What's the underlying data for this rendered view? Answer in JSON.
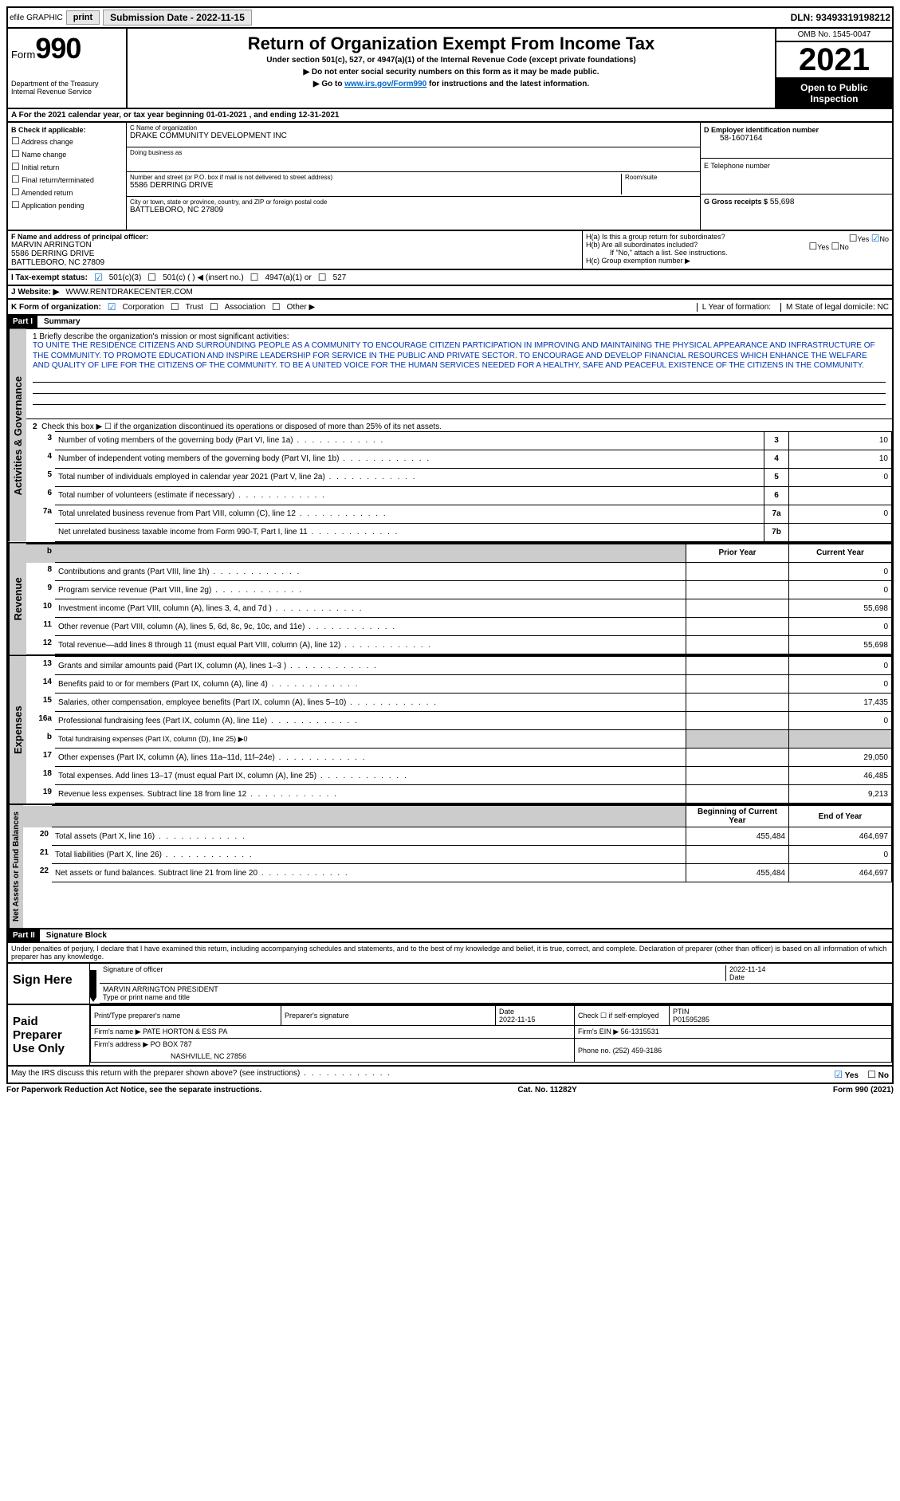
{
  "topbar": {
    "efile": "efile GRAPHIC",
    "print": "print",
    "subdate_label": "Submission Date - 2022-11-15",
    "dln": "DLN: 93493319198212"
  },
  "header": {
    "form_prefix": "Form",
    "form_no": "990",
    "dept": "Department of the Treasury",
    "irs": "Internal Revenue Service",
    "title": "Return of Organization Exempt From Income Tax",
    "sub1": "Under section 501(c), 527, or 4947(a)(1) of the Internal Revenue Code (except private foundations)",
    "sub2": "▶ Do not enter social security numbers on this form as it may be made public.",
    "sub3_pre": "▶ Go to ",
    "sub3_link": "www.irs.gov/Form990",
    "sub3_post": " for instructions and the latest information.",
    "omb": "OMB No. 1545-0047",
    "year": "2021",
    "open": "Open to Public Inspection"
  },
  "rowA": {
    "text_pre": "A For the 2021 calendar year, or tax year beginning ",
    "begin": "01-01-2021",
    "mid": " , and ending ",
    "end": "12-31-2021"
  },
  "colB": {
    "label": "B Check if applicable:",
    "opts": [
      "Address change",
      "Name change",
      "Initial return",
      "Final return/terminated",
      "Amended return",
      "Application pending"
    ]
  },
  "colC": {
    "name_lbl": "C Name of organization",
    "name": "DRAKE COMMUNITY DEVELOPMENT INC",
    "dba_lbl": "Doing business as",
    "dba": "",
    "addr_lbl": "Number and street (or P.O. box if mail is not delivered to street address)",
    "room_lbl": "Room/suite",
    "addr": "5586 DERRING DRIVE",
    "city_lbl": "City or town, state or province, country, and ZIP or foreign postal code",
    "city": "BATTLEBORO, NC  27809"
  },
  "colD": {
    "ein_lbl": "D Employer identification number",
    "ein": "58-1607164",
    "tel_lbl": "E Telephone number",
    "tel": "",
    "gross_lbl": "G Gross receipts $",
    "gross": "55,698"
  },
  "rowF": {
    "lbl": "F  Name and address of principal officer:",
    "name": "MARVIN ARRINGTON",
    "addr1": "5586 DERRING DRIVE",
    "addr2": "BATTLEBORO, NC  27809"
  },
  "rowH": {
    "ha": "H(a)  Is this a group return for subordinates?",
    "hb": "H(b)  Are all subordinates included?",
    "hb_note": "If \"No,\" attach a list. See instructions.",
    "hc": "H(c)  Group exemption number ▶",
    "yes": "Yes",
    "no": "No"
  },
  "rowI": {
    "lbl": "I    Tax-exempt status:",
    "o1": "501(c)(3)",
    "o2": "501(c) (  ) ◀ (insert no.)",
    "o3": "4947(a)(1) or",
    "o4": "527"
  },
  "rowJ": {
    "lbl": "J    Website: ▶",
    "val": "WWW.RENTDRAKECENTER.COM"
  },
  "rowK": {
    "lbl": "K Form of organization:",
    "o1": "Corporation",
    "o2": "Trust",
    "o3": "Association",
    "o4": "Other ▶",
    "L": "L Year of formation:",
    "M": "M State of legal domicile: NC"
  },
  "part1": {
    "hdr": "Part I",
    "title": "Summary"
  },
  "mission": {
    "lbl": "1   Briefly describe the organization's mission or most significant activities:",
    "txt": "TO UNITE THE RESIDENCE CITIZENS AND SURROUNDING PEOPLE AS A COMMUNITY TO ENCOURAGE CITIZEN PARTICIPATION IN IMPROVING AND MAINTAINING THE PHYSICAL APPEARANCE AND INFRASTRUCTURE OF THE COMMUNITY. TO PROMOTE EDUCATION AND INSPIRE LEADERSHIP FOR SERVICE IN THE PUBLIC AND PRIVATE SECTOR. TO ENCOURAGE AND DEVELOP FINANCIAL RESOURCES WHICH ENHANCE THE WELFARE AND QUALITY OF LIFE FOR THE CITIZENS OF THE COMMUNITY. TO BE A UNITED VOICE FOR THE HUMAN SERVICES NEEDED FOR A HEALTHY, SAFE AND PEACEFUL EXISTENCE OF THE CITIZENS IN THE COMMUNITY."
  },
  "activities": {
    "l2": "Check this box ▶ ☐ if the organization discontinued its operations or disposed of more than 25% of its net assets.",
    "rows": [
      {
        "n": "3",
        "d": "Number of voting members of the governing body (Part VI, line 1a)",
        "box": "3",
        "v": "10"
      },
      {
        "n": "4",
        "d": "Number of independent voting members of the governing body (Part VI, line 1b)",
        "box": "4",
        "v": "10"
      },
      {
        "n": "5",
        "d": "Total number of individuals employed in calendar year 2021 (Part V, line 2a)",
        "box": "5",
        "v": "0"
      },
      {
        "n": "6",
        "d": "Total number of volunteers (estimate if necessary)",
        "box": "6",
        "v": ""
      },
      {
        "n": "7a",
        "d": "Total unrelated business revenue from Part VIII, column (C), line 12",
        "box": "7a",
        "v": "0"
      },
      {
        "n": "",
        "d": "Net unrelated business taxable income from Form 990-T, Part I, line 11",
        "box": "7b",
        "v": ""
      }
    ]
  },
  "revenue": {
    "hdr_prior": "Prior Year",
    "hdr_curr": "Current Year",
    "rows": [
      {
        "n": "8",
        "d": "Contributions and grants (Part VIII, line 1h)",
        "p": "",
        "c": "0"
      },
      {
        "n": "9",
        "d": "Program service revenue (Part VIII, line 2g)",
        "p": "",
        "c": "0"
      },
      {
        "n": "10",
        "d": "Investment income (Part VIII, column (A), lines 3, 4, and 7d )",
        "p": "",
        "c": "55,698"
      },
      {
        "n": "11",
        "d": "Other revenue (Part VIII, column (A), lines 5, 6d, 8c, 9c, 10c, and 11e)",
        "p": "",
        "c": "0"
      },
      {
        "n": "12",
        "d": "Total revenue—add lines 8 through 11 (must equal Part VIII, column (A), line 12)",
        "p": "",
        "c": "55,698"
      }
    ]
  },
  "expenses": {
    "rows": [
      {
        "n": "13",
        "d": "Grants and similar amounts paid (Part IX, column (A), lines 1–3 )",
        "p": "",
        "c": "0"
      },
      {
        "n": "14",
        "d": "Benefits paid to or for members (Part IX, column (A), line 4)",
        "p": "",
        "c": "0"
      },
      {
        "n": "15",
        "d": "Salaries, other compensation, employee benefits (Part IX, column (A), lines 5–10)",
        "p": "",
        "c": "17,435"
      },
      {
        "n": "16a",
        "d": "Professional fundraising fees (Part IX, column (A), line 11e)",
        "p": "",
        "c": "0"
      },
      {
        "n": "b",
        "d": "Total fundraising expenses (Part IX, column (D), line 25) ▶0",
        "p": "shade",
        "c": "shade"
      },
      {
        "n": "17",
        "d": "Other expenses (Part IX, column (A), lines 11a–11d, 11f–24e)",
        "p": "",
        "c": "29,050"
      },
      {
        "n": "18",
        "d": "Total expenses. Add lines 13–17 (must equal Part IX, column (A), line 25)",
        "p": "",
        "c": "46,485"
      },
      {
        "n": "19",
        "d": "Revenue less expenses. Subtract line 18 from line 12",
        "p": "",
        "c": "9,213"
      }
    ]
  },
  "netassets": {
    "hdr_begin": "Beginning of Current Year",
    "hdr_end": "End of Year",
    "rows": [
      {
        "n": "20",
        "d": "Total assets (Part X, line 16)",
        "p": "455,484",
        "c": "464,697"
      },
      {
        "n": "21",
        "d": "Total liabilities (Part X, line 26)",
        "p": "",
        "c": "0"
      },
      {
        "n": "22",
        "d": "Net assets or fund balances. Subtract line 21 from line 20",
        "p": "455,484",
        "c": "464,697"
      }
    ]
  },
  "part2": {
    "hdr": "Part II",
    "title": "Signature Block"
  },
  "penalty": "Under penalties of perjury, I declare that I have examined this return, including accompanying schedules and statements, and to the best of my knowledge and belief, it is true, correct, and complete. Declaration of preparer (other than officer) is based on all information of which preparer has any knowledge.",
  "sign": {
    "here": "Sign Here",
    "sig_lbl": "Signature of officer",
    "date_lbl": "Date",
    "date": "2022-11-14",
    "name": "MARVIN ARRINGTON PRESIDENT",
    "name_lbl": "Type or print name and title"
  },
  "paid": {
    "lbl": "Paid Preparer Use Only",
    "h1": "Print/Type preparer's name",
    "h2": "Preparer's signature",
    "h3": "Date",
    "h3v": "2022-11-15",
    "h4": "Check ☐ if self-employed",
    "h5": "PTIN",
    "h5v": "P01595285",
    "firm_lbl": "Firm's name    ▶",
    "firm": "PATE HORTON & ESS PA",
    "ein_lbl": "Firm's EIN ▶",
    "ein": "56-1315531",
    "addr_lbl": "Firm's address ▶",
    "addr1": "PO BOX 787",
    "addr2": "NASHVILLE, NC  27856",
    "phone_lbl": "Phone no.",
    "phone": "(252) 459-3186"
  },
  "discuss": {
    "q": "May the IRS discuss this return with the preparer shown above? (see instructions)",
    "yes": "Yes",
    "no": "No"
  },
  "footer": {
    "left": "For Paperwork Reduction Act Notice, see the separate instructions.",
    "mid": "Cat. No. 11282Y",
    "right": "Form 990 (2021)"
  },
  "vtabs": {
    "ag": "Activities & Governance",
    "rev": "Revenue",
    "exp": "Expenses",
    "na": "Net Assets or Fund Balances"
  }
}
